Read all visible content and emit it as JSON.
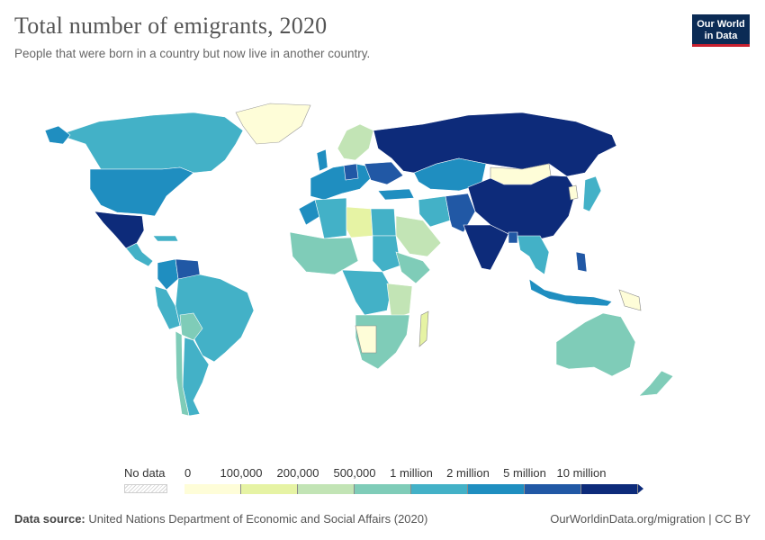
{
  "header": {
    "title": "Total number of emigrants, 2020",
    "subtitle": "People that were born in a country but now live in another country."
  },
  "logo": {
    "line1": "Our World",
    "line2": "in Data",
    "bg_color": "#0b2b55",
    "accent_color": "#c8202f"
  },
  "legend": {
    "no_data_label": "No data",
    "ticks": [
      "0",
      "100,000",
      "200,000",
      "500,000",
      "1 million",
      "2 million",
      "5 million",
      "10 million"
    ],
    "colors": [
      "#fefdd8",
      "#e6f3a4",
      "#c2e4b5",
      "#7fccb8",
      "#43b1c7",
      "#1f8ec0",
      "#2158a5",
      "#0d2b7a"
    ]
  },
  "footer": {
    "source_label": "Data source:",
    "source_text": "United Nations Department of Economic and Social Affairs (2020)",
    "right_text": "OurWorldinData.org/migration | CC BY"
  },
  "map_data": {
    "regions": [
      {
        "name": "Russia",
        "bin": 7
      },
      {
        "name": "China",
        "bin": 7
      },
      {
        "name": "India",
        "bin": 7
      },
      {
        "name": "Mexico",
        "bin": 7
      },
      {
        "name": "Ukraine",
        "bin": 6
      },
      {
        "name": "Pakistan",
        "bin": 6
      },
      {
        "name": "Bangladesh",
        "bin": 6
      },
      {
        "name": "Venezuela",
        "bin": 6
      },
      {
        "name": "Philippines",
        "bin": 6
      },
      {
        "name": "United States",
        "bin": 5
      },
      {
        "name": "Kazakhstan",
        "bin": 5
      },
      {
        "name": "Germany",
        "bin": 5
      },
      {
        "name": "Indonesia",
        "bin": 5
      },
      {
        "name": "Colombia",
        "bin": 5
      },
      {
        "name": "Canada",
        "bin": 4
      },
      {
        "name": "Brazil",
        "bin": 4
      },
      {
        "name": "Algeria",
        "bin": 4
      },
      {
        "name": "Iran",
        "bin": 4
      },
      {
        "name": "Japan",
        "bin": 4
      },
      {
        "name": "Australia",
        "bin": 3
      },
      {
        "name": "Argentina",
        "bin": 4
      },
      {
        "name": "Peru",
        "bin": 4
      },
      {
        "name": "Bolivia",
        "bin": 3
      },
      {
        "name": "South Africa",
        "bin": 3
      },
      {
        "name": "New Zealand",
        "bin": 3
      },
      {
        "name": "Mongolia",
        "bin": 0
      },
      {
        "name": "Greenland",
        "bin": 0
      },
      {
        "name": "Libya",
        "bin": 1
      },
      {
        "name": "Botswana",
        "bin": 0
      },
      {
        "name": "Namibia",
        "bin": 1
      },
      {
        "name": "Madagascar",
        "bin": 1
      },
      {
        "name": "Papua New Guinea",
        "bin": 0
      },
      {
        "name": "Saudi Arabia",
        "bin": 2
      },
      {
        "name": "Sudan",
        "bin": 4
      },
      {
        "name": "DR Congo",
        "bin": 4
      }
    ]
  }
}
